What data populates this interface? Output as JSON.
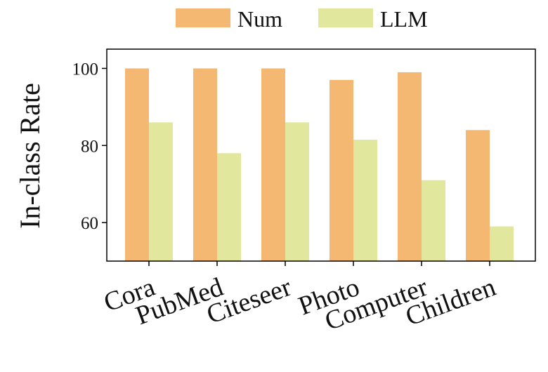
{
  "chart_data": {
    "type": "bar",
    "title": "",
    "xlabel": "",
    "ylabel": "In-class Rate",
    "ylim": [
      50,
      105
    ],
    "yticks": [
      60,
      80,
      100
    ],
    "grid": false,
    "legend_position": "top-center",
    "categories": [
      "Cora",
      "PubMed",
      "Citeseer",
      "Photo",
      "Computer",
      "Children"
    ],
    "series": [
      {
        "name": "Num",
        "color": "#F5B872",
        "values": [
          100,
          100,
          100,
          97,
          99,
          84
        ]
      },
      {
        "name": "LLM",
        "color": "#E1E89E",
        "values": [
          86,
          78,
          86,
          81.5,
          71,
          59
        ]
      }
    ]
  }
}
